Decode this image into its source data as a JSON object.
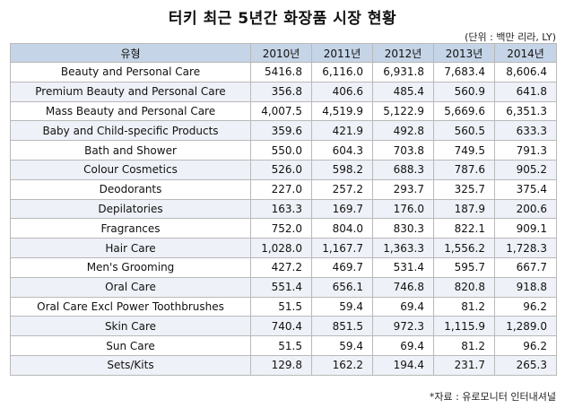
{
  "title": "터키 최근 5년간 화장품 시장 현황",
  "unit_note": "(단위 : 백만 리라, LY)",
  "source_note": "*자료 : 유로모니터 인터내셔널",
  "table": {
    "headers": [
      "유형",
      "2010년",
      "2011년",
      "2012년",
      "2013년",
      "2014년"
    ],
    "rows": [
      {
        "name": "Beauty and Personal Care",
        "values": [
          "5416.8",
          "6,116.0",
          "6,931.8",
          "7,683.4",
          "8,606.4"
        ]
      },
      {
        "name": "Premium Beauty and Personal Care",
        "values": [
          "356.8",
          "406.6",
          "485.4",
          "560.9",
          "641.8"
        ]
      },
      {
        "name": "Mass Beauty and Personal Care",
        "values": [
          "4,007.5",
          "4,519.9",
          "5,122.9",
          "5,669.6",
          "6,351.3"
        ]
      },
      {
        "name": "Baby and Child-specific Products",
        "values": [
          "359.6",
          "421.9",
          "492.8",
          "560.5",
          "633.3"
        ]
      },
      {
        "name": "Bath and Shower",
        "values": [
          "550.0",
          "604.3",
          "703.8",
          "749.5",
          "791.3"
        ]
      },
      {
        "name": "Colour Cosmetics",
        "values": [
          "526.0",
          "598.2",
          "688.3",
          "787.6",
          "905.2"
        ]
      },
      {
        "name": "Deodorants",
        "values": [
          "227.0",
          "257.2",
          "293.7",
          "325.7",
          "375.4"
        ]
      },
      {
        "name": "Depilatories",
        "values": [
          "163.3",
          "169.7",
          "176.0",
          "187.9",
          "200.6"
        ]
      },
      {
        "name": "Fragrances",
        "values": [
          "752.0",
          "804.0",
          "830.3",
          "822.1",
          "909.1"
        ]
      },
      {
        "name": "Hair Care",
        "values": [
          "1,028.0",
          "1,167.7",
          "1,363.3",
          "1,556.2",
          "1,728.3"
        ]
      },
      {
        "name": "Men's Grooming",
        "values": [
          "427.2",
          "469.7",
          "531.4",
          "595.7",
          "667.7"
        ]
      },
      {
        "name": "Oral Care",
        "values": [
          "551.4",
          "656.1",
          "746.8",
          "820.8",
          "918.8"
        ]
      },
      {
        "name": "Oral Care Excl Power Toothbrushes",
        "values": [
          "51.5",
          "59.4",
          "69.4",
          "81.2",
          "96.2"
        ]
      },
      {
        "name": "Skin Care",
        "values": [
          "740.4",
          "851.5",
          "972.3",
          "1,115.9",
          "1,289.0"
        ]
      },
      {
        "name": "Sun Care",
        "values": [
          "51.5",
          "59.4",
          "69.4",
          "81.2",
          "96.2"
        ]
      },
      {
        "name": "Sets/Kits",
        "values": [
          "129.8",
          "162.2",
          "194.4",
          "231.7",
          "265.3"
        ]
      }
    ]
  }
}
